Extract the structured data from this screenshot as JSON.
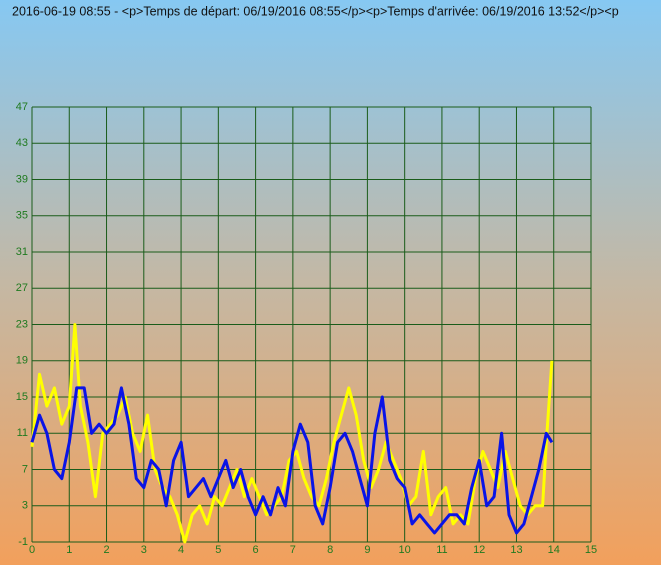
{
  "chart_data": {
    "type": "line",
    "title": "2016-06-19 08:55 - <p>Temps de départ: 06/19/2016 08:55</p><p>Temps d'arrivée: 06/19/2016 13:52</p><p",
    "xlim": [
      0,
      15
    ],
    "xticks": [
      0,
      1,
      2,
      3,
      4,
      5,
      6,
      7,
      8,
      9,
      10,
      11,
      12,
      13,
      14,
      15
    ],
    "ylim": [
      -1,
      47
    ],
    "yticks": [
      -1,
      3,
      7,
      11,
      15,
      19,
      23,
      27,
      31,
      35,
      39,
      43,
      47
    ],
    "grid": true,
    "grid_color": "#1a5c1a",
    "series": [
      {
        "color": "#ffff00",
        "x": [
          0,
          0.2,
          0.4,
          0.6,
          0.8,
          1.0,
          1.15,
          1.3,
          1.5,
          1.7,
          1.9,
          2.1,
          2.3,
          2.5,
          2.7,
          2.9,
          3.1,
          3.3,
          3.5,
          3.7,
          3.9,
          4.1,
          4.3,
          4.5,
          4.7,
          4.9,
          5.1,
          5.3,
          5.5,
          5.7,
          5.9,
          6.1,
          6.3,
          6.5,
          6.7,
          6.9,
          7.1,
          7.3,
          7.5,
          7.7,
          7.9,
          8.1,
          8.3,
          8.5,
          8.7,
          8.9,
          9.1,
          9.3,
          9.5,
          9.7,
          9.9,
          10.1,
          10.3,
          10.5,
          10.7,
          10.9,
          11.1,
          11.3,
          11.5,
          11.7,
          11.9,
          12.1,
          12.3,
          12.5,
          12.7,
          12.9,
          13.1,
          13.3,
          13.5,
          13.7,
          13.8,
          13.95
        ],
        "values": [
          9.5,
          17.5,
          14,
          16,
          12,
          14,
          23,
          14,
          10,
          4,
          11,
          12,
          13,
          15,
          11,
          9,
          13,
          7,
          5,
          4,
          2,
          -1,
          2,
          3,
          1,
          4,
          3,
          5,
          7,
          4,
          6,
          4,
          2,
          3,
          4,
          8,
          9,
          6,
          4,
          3,
          6,
          10,
          13,
          16,
          13,
          8,
          5,
          7,
          10,
          8,
          6,
          3,
          4,
          9,
          2,
          4,
          5,
          1,
          2,
          1,
          6,
          9,
          7,
          5,
          9,
          6,
          3,
          2,
          3,
          3,
          10,
          19
        ]
      },
      {
        "color": "#0a14e6",
        "x": [
          0,
          0.2,
          0.4,
          0.6,
          0.8,
          1.0,
          1.2,
          1.4,
          1.6,
          1.8,
          2.0,
          2.2,
          2.4,
          2.6,
          2.8,
          3.0,
          3.2,
          3.4,
          3.6,
          3.8,
          4.0,
          4.2,
          4.4,
          4.6,
          4.8,
          5.0,
          5.2,
          5.4,
          5.6,
          5.8,
          6.0,
          6.2,
          6.4,
          6.6,
          6.8,
          7.0,
          7.2,
          7.4,
          7.6,
          7.8,
          8.0,
          8.2,
          8.4,
          8.6,
          8.8,
          9.0,
          9.2,
          9.4,
          9.6,
          9.8,
          10.0,
          10.2,
          10.4,
          10.6,
          10.8,
          11.0,
          11.2,
          11.4,
          11.6,
          11.8,
          12.0,
          12.2,
          12.4,
          12.6,
          12.8,
          13.0,
          13.2,
          13.4,
          13.6,
          13.8,
          13.95
        ],
        "values": [
          10,
          13,
          11,
          7,
          6,
          10,
          16,
          16,
          11,
          12,
          11,
          12,
          16,
          12,
          6,
          5,
          8,
          7,
          3,
          8,
          10,
          4,
          5,
          6,
          4,
          6,
          8,
          5,
          7,
          4,
          2,
          4,
          2,
          5,
          3,
          9,
          12,
          10,
          3,
          1,
          5,
          10,
          11,
          9,
          6,
          3,
          11,
          15,
          8,
          6,
          5,
          1,
          2,
          1,
          0,
          1,
          2,
          2,
          1,
          5,
          8,
          3,
          4,
          11,
          2,
          0,
          1,
          4,
          7,
          11,
          10
        ]
      }
    ]
  }
}
